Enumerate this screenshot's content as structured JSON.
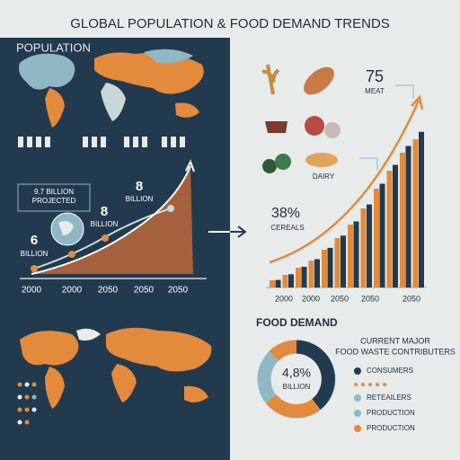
{
  "header": {
    "title": "GLOBAL POPULATION & FOOD DEMAND TRENDS"
  },
  "population": {
    "heading": "POPULATION",
    "projection": [
      "9.7 BILLION",
      "PROJECTED"
    ],
    "mid": {
      "number": "8",
      "unit": "BILLION"
    },
    "start": {
      "number": "6",
      "unit": "BILLION"
    },
    "years": [
      "2000",
      "2000",
      "2050",
      "2050",
      "2050"
    ]
  },
  "food": {
    "meat": {
      "number": "75",
      "label": "MEAT"
    },
    "dairy": "DAIRY",
    "cereals": {
      "number": "38%",
      "label": "CEREALS"
    },
    "years": [
      "2000",
      "2000",
      "2050",
      "2050",
      "2050"
    ]
  },
  "demand": {
    "heading": "FOOD DEMAND",
    "subtitle": [
      "CURRENT MAJOR",
      "FOOD WASTE CONTRIBUTERS"
    ],
    "center": {
      "number": "4,8%",
      "unit": "BILLION"
    },
    "legend": [
      "CONSUMERS",
      "RETEAILERS",
      "PRODUCTION",
      "PRODUCTION"
    ]
  }
}
